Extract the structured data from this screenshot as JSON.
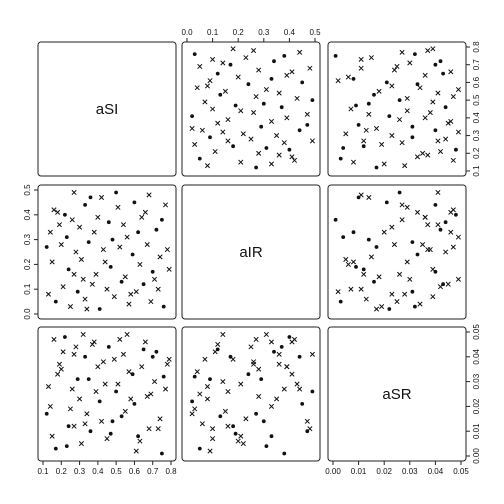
{
  "chart_data": {
    "type": "scatter",
    "title": "",
    "variables": [
      "aSI",
      "aIR",
      "aSR"
    ],
    "ranges": {
      "aSI": [
        0.1,
        0.8
      ],
      "aIR": [
        0.0,
        0.5
      ],
      "aSR": [
        0.0,
        0.05
      ]
    },
    "ticks": {
      "aSI": [
        "0.1",
        "0.2",
        "0.3",
        "0.4",
        "0.5",
        "0.6",
        "0.7",
        "0.8"
      ],
      "aIR": [
        "0.0",
        "0.1",
        "0.2",
        "0.3",
        "0.4",
        "0.5"
      ],
      "aSR": [
        "0.00",
        "0.01",
        "0.02",
        "0.03",
        "0.04",
        "0.05"
      ]
    },
    "grid": false,
    "legend": "none",
    "marker_types": [
      "cross",
      "dot"
    ],
    "points": [
      {
        "aSI": 0.16,
        "aIR": 0.42,
        "aSR": 0.047,
        "m": "cross"
      },
      {
        "aSI": 0.18,
        "aIR": 0.41,
        "aSR": 0.033,
        "m": "cross"
      },
      {
        "aSI": 0.22,
        "aIR": 0.4,
        "aSR": 0.048,
        "m": "dot"
      },
      {
        "aSI": 0.27,
        "aIR": 0.49,
        "aSR": 0.041,
        "m": "cross"
      },
      {
        "aSI": 0.3,
        "aIR": 0.35,
        "aSR": 0.023,
        "m": "cross"
      },
      {
        "aSI": 0.33,
        "aIR": 0.44,
        "aSR": 0.04,
        "m": "dot"
      },
      {
        "aSI": 0.38,
        "aIR": 0.33,
        "aSR": 0.046,
        "m": "cross"
      },
      {
        "aSI": 0.42,
        "aIR": 0.47,
        "aSR": 0.014,
        "m": "cross"
      },
      {
        "aSI": 0.46,
        "aIR": 0.37,
        "aSR": 0.044,
        "m": "dot"
      },
      {
        "aSI": 0.51,
        "aIR": 0.43,
        "aSR": 0.029,
        "m": "cross"
      },
      {
        "aSI": 0.56,
        "aIR": 0.31,
        "aSR": 0.049,
        "m": "cross"
      },
      {
        "aSI": 0.6,
        "aIR": 0.45,
        "aSR": 0.021,
        "m": "dot"
      },
      {
        "aSI": 0.64,
        "aIR": 0.39,
        "aSR": 0.036,
        "m": "cross"
      },
      {
        "aSI": 0.68,
        "aIR": 0.48,
        "aSR": 0.011,
        "m": "cross"
      },
      {
        "aSI": 0.72,
        "aIR": 0.34,
        "aSR": 0.042,
        "m": "dot"
      },
      {
        "aSI": 0.77,
        "aIR": 0.44,
        "aSR": 0.027,
        "m": "cross"
      },
      {
        "aSI": 0.12,
        "aIR": 0.27,
        "aSR": 0.017,
        "m": "dot"
      },
      {
        "aSI": 0.15,
        "aIR": 0.21,
        "aSR": 0.008,
        "m": "cross"
      },
      {
        "aSI": 0.2,
        "aIR": 0.28,
        "aSR": 0.035,
        "m": "cross"
      },
      {
        "aSI": 0.24,
        "aIR": 0.18,
        "aSR": 0.012,
        "m": "dot"
      },
      {
        "aSI": 0.28,
        "aIR": 0.25,
        "aSR": 0.044,
        "m": "cross"
      },
      {
        "aSI": 0.31,
        "aIR": 0.22,
        "aSR": 0.005,
        "m": "cross"
      },
      {
        "aSI": 0.35,
        "aIR": 0.29,
        "aSR": 0.031,
        "m": "dot"
      },
      {
        "aSI": 0.39,
        "aIR": 0.16,
        "aSR": 0.026,
        "m": "cross"
      },
      {
        "aSI": 0.43,
        "aIR": 0.26,
        "aSR": 0.038,
        "m": "cross"
      },
      {
        "aSI": 0.47,
        "aIR": 0.19,
        "aSR": 0.009,
        "m": "dot"
      },
      {
        "aSI": 0.52,
        "aIR": 0.27,
        "aSR": 0.047,
        "m": "cross"
      },
      {
        "aSI": 0.55,
        "aIR": 0.15,
        "aSR": 0.018,
        "m": "cross"
      },
      {
        "aSI": 0.59,
        "aIR": 0.24,
        "aSR": 0.033,
        "m": "dot"
      },
      {
        "aSI": 0.63,
        "aIR": 0.2,
        "aSR": 0.006,
        "m": "cross"
      },
      {
        "aSI": 0.67,
        "aIR": 0.28,
        "aSR": 0.024,
        "m": "cross"
      },
      {
        "aSI": 0.7,
        "aIR": 0.17,
        "aSR": 0.04,
        "m": "dot"
      },
      {
        "aSI": 0.74,
        "aIR": 0.23,
        "aSR": 0.015,
        "m": "cross"
      },
      {
        "aSI": 0.78,
        "aIR": 0.26,
        "aSR": 0.037,
        "m": "cross"
      },
      {
        "aSI": 0.13,
        "aIR": 0.08,
        "aSR": 0.028,
        "m": "cross"
      },
      {
        "aSI": 0.17,
        "aIR": 0.05,
        "aSR": 0.003,
        "m": "dot"
      },
      {
        "aSI": 0.21,
        "aIR": 0.11,
        "aSR": 0.042,
        "m": "cross"
      },
      {
        "aSI": 0.25,
        "aIR": 0.03,
        "aSR": 0.019,
        "m": "cross"
      },
      {
        "aSI": 0.29,
        "aIR": 0.09,
        "aSR": 0.031,
        "m": "dot"
      },
      {
        "aSI": 0.33,
        "aIR": 0.06,
        "aSR": 0.013,
        "m": "cross"
      },
      {
        "aSI": 0.37,
        "aIR": 0.12,
        "aSR": 0.045,
        "m": "cross"
      },
      {
        "aSI": 0.41,
        "aIR": 0.02,
        "aSR": 0.022,
        "m": "dot"
      },
      {
        "aSI": 0.45,
        "aIR": 0.1,
        "aSR": 0.007,
        "m": "cross"
      },
      {
        "aSI": 0.49,
        "aIR": 0.07,
        "aSR": 0.039,
        "m": "cross"
      },
      {
        "aSI": 0.53,
        "aIR": 0.13,
        "aSR": 0.016,
        "m": "dot"
      },
      {
        "aSI": 0.57,
        "aIR": 0.04,
        "aSR": 0.034,
        "m": "cross"
      },
      {
        "aSI": 0.61,
        "aIR": 0.09,
        "aSR": 0.002,
        "m": "cross"
      },
      {
        "aSI": 0.65,
        "aIR": 0.12,
        "aSR": 0.043,
        "m": "dot"
      },
      {
        "aSI": 0.69,
        "aIR": 0.05,
        "aSR": 0.025,
        "m": "cross"
      },
      {
        "aSI": 0.73,
        "aIR": 0.1,
        "aSR": 0.011,
        "m": "cross"
      },
      {
        "aSI": 0.76,
        "aIR": 0.03,
        "aSR": 0.032,
        "m": "dot"
      },
      {
        "aSI": 0.14,
        "aIR": 0.33,
        "aSR": 0.02,
        "m": "cross"
      },
      {
        "aSI": 0.19,
        "aIR": 0.36,
        "aSR": 0.037,
        "m": "cross"
      },
      {
        "aSI": 0.23,
        "aIR": 0.31,
        "aSR": 0.004,
        "m": "dot"
      },
      {
        "aSI": 0.26,
        "aIR": 0.38,
        "aSR": 0.027,
        "m": "cross"
      },
      {
        "aSI": 0.32,
        "aIR": 0.14,
        "aSR": 0.049,
        "m": "cross"
      },
      {
        "aSI": 0.36,
        "aIR": 0.47,
        "aSR": 0.01,
        "m": "dot"
      },
      {
        "aSI": 0.4,
        "aIR": 0.39,
        "aSR": 0.036,
        "m": "cross"
      },
      {
        "aSI": 0.44,
        "aIR": 0.21,
        "aSR": 0.029,
        "m": "cross"
      },
      {
        "aSI": 0.48,
        "aIR": 0.3,
        "aSR": 0.014,
        "m": "dot"
      },
      {
        "aSI": 0.54,
        "aIR": 0.36,
        "aSR": 0.041,
        "m": "cross"
      },
      {
        "aSI": 0.58,
        "aIR": 0.08,
        "aSR": 0.023,
        "m": "cross"
      },
      {
        "aSI": 0.62,
        "aIR": 0.33,
        "aSR": 0.008,
        "m": "dot"
      },
      {
        "aSI": 0.66,
        "aIR": 0.41,
        "aSR": 0.046,
        "m": "cross"
      },
      {
        "aSI": 0.71,
        "aIR": 0.14,
        "aSR": 0.03,
        "m": "cross"
      },
      {
        "aSI": 0.75,
        "aIR": 0.38,
        "aSR": 0.001,
        "m": "dot"
      },
      {
        "aSI": 0.79,
        "aIR": 0.18,
        "aSR": 0.039,
        "m": "cross"
      },
      {
        "aSI": 0.34,
        "aIR": 0.02,
        "aSR": 0.017,
        "m": "cross"
      },
      {
        "aSI": 0.5,
        "aIR": 0.49,
        "aSR": 0.026,
        "m": "dot"
      },
      {
        "aSI": 0.27,
        "aIR": 0.16,
        "aSR": 0.012,
        "m": "cross"
      }
    ]
  }
}
